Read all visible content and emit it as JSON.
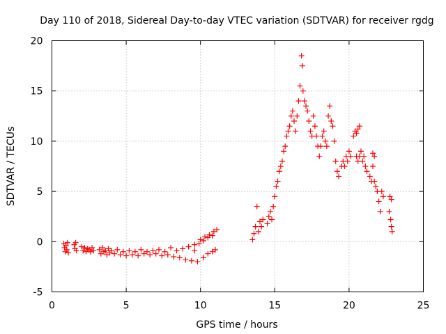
{
  "chart_data": {
    "type": "scatter",
    "title": "Day 110 of 2018, Sidereal Day-to-day VTEC variation (SDTVAR) for receiver rgdg",
    "xlabel": "GPS time / hours",
    "ylabel": "SDTVAR / TECUs",
    "xlim": [
      0,
      25
    ],
    "ylim": [
      -5,
      20
    ],
    "xticks": [
      "0",
      "5",
      "10",
      "15",
      "20",
      "25"
    ],
    "yticks": [
      "-5",
      "0",
      "5",
      "10",
      "15",
      "20"
    ],
    "grid": true,
    "marker": "plus",
    "color": "#ff0000",
    "series": [
      {
        "name": "SDTVAR",
        "points": [
          [
            0.8,
            -0.2
          ],
          [
            0.85,
            -0.6
          ],
          [
            0.9,
            -1.0
          ],
          [
            0.95,
            -0.4
          ],
          [
            1.0,
            -0.8
          ],
          [
            1.05,
            -0.1
          ],
          [
            1.1,
            -1.1
          ],
          [
            1.5,
            -0.3
          ],
          [
            1.55,
            -0.7
          ],
          [
            1.6,
            -0.1
          ],
          [
            1.65,
            -0.9
          ],
          [
            2.0,
            -0.5
          ],
          [
            2.1,
            -0.9
          ],
          [
            2.2,
            -0.6
          ],
          [
            2.3,
            -1.0
          ],
          [
            2.4,
            -0.7
          ],
          [
            2.5,
            -0.8
          ],
          [
            2.6,
            -1.0
          ],
          [
            2.7,
            -0.6
          ],
          [
            2.8,
            -0.9
          ],
          [
            3.2,
            -0.8
          ],
          [
            3.3,
            -1.2
          ],
          [
            3.4,
            -0.6
          ],
          [
            3.5,
            -1.0
          ],
          [
            3.6,
            -0.9
          ],
          [
            3.7,
            -1.3
          ],
          [
            3.8,
            -0.7
          ],
          [
            3.9,
            -1.1
          ],
          [
            4.0,
            -0.9
          ],
          [
            4.2,
            -1.2
          ],
          [
            4.4,
            -0.8
          ],
          [
            4.6,
            -1.3
          ],
          [
            4.8,
            -1.0
          ],
          [
            5.0,
            -1.4
          ],
          [
            5.2,
            -0.9
          ],
          [
            5.4,
            -1.3
          ],
          [
            5.6,
            -1.0
          ],
          [
            5.8,
            -1.4
          ],
          [
            6.0,
            -0.8
          ],
          [
            6.2,
            -1.2
          ],
          [
            6.4,
            -1.0
          ],
          [
            6.6,
            -1.3
          ],
          [
            6.8,
            -0.9
          ],
          [
            7.0,
            -1.2
          ],
          [
            7.2,
            -0.8
          ],
          [
            7.4,
            -1.4
          ],
          [
            7.6,
            -1.0
          ],
          [
            7.8,
            -1.3
          ],
          [
            8.0,
            -0.6
          ],
          [
            8.2,
            -1.5
          ],
          [
            8.4,
            -0.9
          ],
          [
            8.6,
            -1.6
          ],
          [
            8.8,
            -0.7
          ],
          [
            9.0,
            -1.8
          ],
          [
            9.2,
            -0.5
          ],
          [
            9.4,
            -1.9
          ],
          [
            9.6,
            -0.3
          ],
          [
            9.8,
            -2.0
          ],
          [
            10.0,
            0.2
          ],
          [
            10.2,
            -1.6
          ],
          [
            10.3,
            0.5
          ],
          [
            10.5,
            -1.2
          ],
          [
            10.6,
            0.7
          ],
          [
            10.8,
            -1.0
          ],
          [
            10.9,
            1.0
          ],
          [
            11.0,
            -0.8
          ],
          [
            11.1,
            1.2
          ],
          [
            9.6,
            -0.9
          ],
          [
            9.9,
            -0.2
          ],
          [
            10.2,
            0.1
          ],
          [
            10.5,
            0.4
          ],
          [
            10.8,
            0.6
          ],
          [
            13.5,
            0.2
          ],
          [
            13.6,
            0.8
          ],
          [
            13.7,
            1.5
          ],
          [
            13.8,
            3.5
          ],
          [
            13.9,
            1.0
          ],
          [
            14.0,
            2.0
          ],
          [
            14.1,
            1.5
          ],
          [
            14.2,
            2.2
          ],
          [
            14.5,
            1.8
          ],
          [
            14.6,
            2.5
          ],
          [
            14.7,
            3.0
          ],
          [
            14.8,
            2.2
          ],
          [
            14.9,
            3.5
          ],
          [
            15.0,
            4.5
          ],
          [
            15.1,
            5.5
          ],
          [
            15.2,
            6.0
          ],
          [
            15.3,
            7.0
          ],
          [
            15.4,
            7.5
          ],
          [
            15.5,
            8.0
          ],
          [
            15.6,
            9.0
          ],
          [
            15.7,
            9.5
          ],
          [
            15.8,
            10.5
          ],
          [
            15.9,
            11.0
          ],
          [
            16.0,
            11.5
          ],
          [
            16.1,
            12.5
          ],
          [
            16.2,
            13.0
          ],
          [
            16.3,
            12.0
          ],
          [
            16.4,
            11.0
          ],
          [
            16.5,
            12.5
          ],
          [
            16.6,
            14.0
          ],
          [
            16.7,
            15.5
          ],
          [
            16.8,
            18.5
          ],
          [
            16.85,
            17.5
          ],
          [
            16.9,
            15.0
          ],
          [
            17.0,
            14.0
          ],
          [
            17.1,
            13.5
          ],
          [
            17.2,
            13.0
          ],
          [
            17.3,
            12.0
          ],
          [
            17.4,
            11.0
          ],
          [
            17.5,
            10.5
          ],
          [
            17.6,
            12.5
          ],
          [
            17.7,
            11.5
          ],
          [
            17.8,
            10.5
          ],
          [
            17.9,
            9.5
          ],
          [
            18.0,
            8.5
          ],
          [
            18.1,
            9.5
          ],
          [
            18.2,
            10.5
          ],
          [
            18.3,
            11.0
          ],
          [
            18.4,
            10.0
          ],
          [
            18.5,
            9.5
          ],
          [
            18.6,
            12.5
          ],
          [
            18.7,
            13.5
          ],
          [
            18.8,
            12.0
          ],
          [
            18.9,
            11.5
          ],
          [
            19.0,
            10.0
          ],
          [
            19.1,
            8.0
          ],
          [
            19.2,
            7.0
          ],
          [
            19.3,
            6.5
          ],
          [
            19.5,
            7.5
          ],
          [
            19.6,
            8.0
          ],
          [
            19.7,
            7.5
          ],
          [
            19.8,
            8.5
          ],
          [
            19.9,
            8.0
          ],
          [
            20.0,
            9.0
          ],
          [
            20.1,
            8.5
          ],
          [
            20.3,
            10.5
          ],
          [
            20.4,
            11.0
          ],
          [
            20.5,
            10.8
          ],
          [
            20.6,
            11.2
          ],
          [
            20.7,
            11.5
          ],
          [
            20.5,
            8.5
          ],
          [
            20.6,
            8.0
          ],
          [
            20.7,
            8.5
          ],
          [
            20.8,
            9.0
          ],
          [
            20.9,
            8.0
          ],
          [
            21.0,
            8.5
          ],
          [
            21.1,
            7.5
          ],
          [
            21.2,
            7.0
          ],
          [
            21.4,
            6.5
          ],
          [
            21.5,
            6.0
          ],
          [
            21.6,
            7.5
          ],
          [
            21.7,
            6.0
          ],
          [
            21.8,
            5.5
          ],
          [
            21.9,
            5.0
          ],
          [
            22.0,
            4.0
          ],
          [
            22.1,
            3.0
          ],
          [
            21.6,
            8.8
          ],
          [
            21.7,
            8.5
          ],
          [
            22.2,
            5.0
          ],
          [
            22.3,
            4.5
          ],
          [
            22.7,
            3.0
          ],
          [
            22.8,
            2.2
          ],
          [
            22.85,
            1.5
          ],
          [
            22.9,
            1.0
          ],
          [
            22.75,
            4.5
          ],
          [
            22.85,
            4.2
          ]
        ]
      }
    ]
  }
}
